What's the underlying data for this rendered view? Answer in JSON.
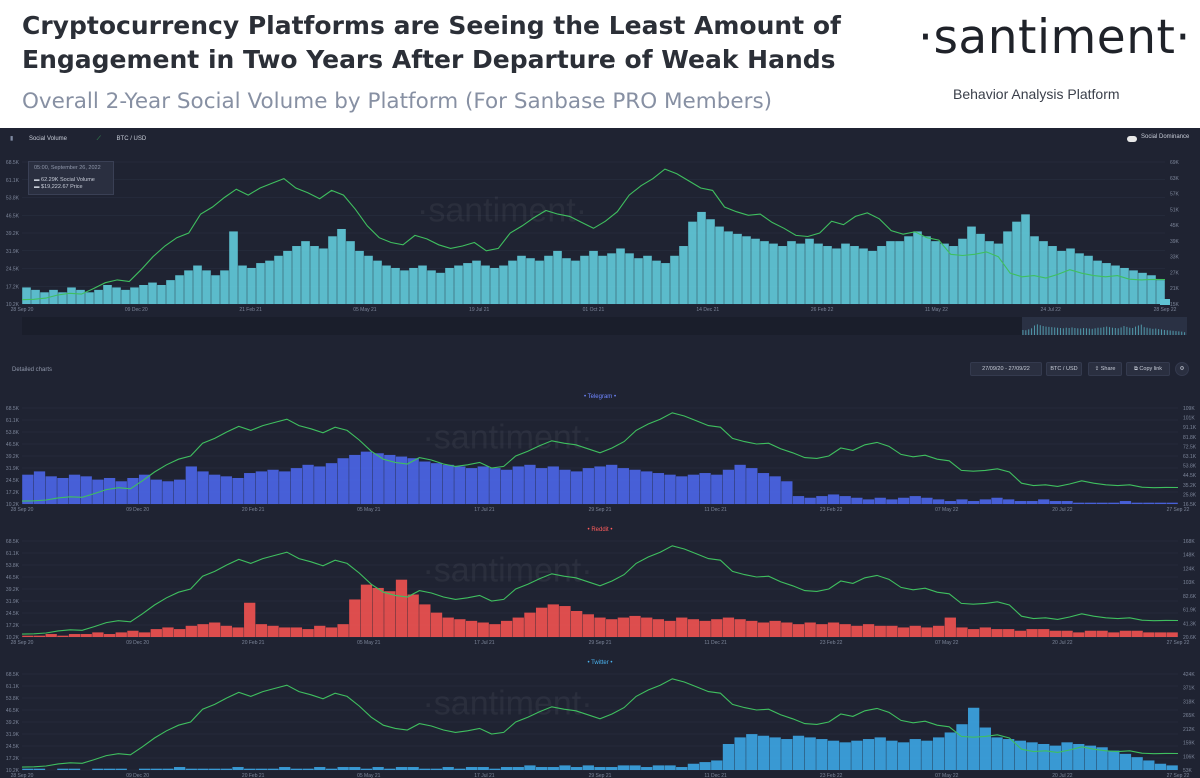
{
  "header": {
    "title_line1": "Cryptocurrency Platforms are Seeing the Least Amount of",
    "title_line2": "Engagement in Two Years After Departure of Weak Hands",
    "subtitle": "Overall 2-Year Social Volume by Platform (For Sanbase PRO Members)",
    "logo": "·santiment·",
    "logo_tagline": "Behavior Analysis Platform"
  },
  "dashboard": {
    "legend_social_volume": "Social Volume",
    "legend_btc": "BTC / USD",
    "social_dominance": "Social Dominance",
    "tooltip_date": "05:00, September 26, 2022",
    "tooltip_sv": "62.29K Social Volume",
    "tooltip_price": "$19,222.67 Price",
    "detailed_label": "Detailed charts",
    "date_range": "27/09/20 - 27/09/22",
    "pair_button": "BTC / USD",
    "share_button": "Share",
    "copy_link_button": "Copy link",
    "watermark": "·santiment·",
    "colors": {
      "background": "#1f2332",
      "btc_line": "#3fbf5f",
      "overall_bars": "#5fc4d4",
      "telegram_bars": "#4a63e0",
      "reddit_bars": "#e8504f",
      "twitter_bars": "#3ba0dc"
    }
  },
  "chart_data": [
    {
      "type": "bar",
      "panel": "overall",
      "title": "",
      "x_ticks": [
        "28 Sep 20",
        "09 Dec 20",
        "21 Feb 21",
        "05 May 21",
        "19 Jul 21",
        "01 Oct 21",
        "14 Dec 21",
        "26 Feb 22",
        "11 May 22",
        "24 Jul 22",
        "28 Sep 22"
      ],
      "y_left_ticks": [
        "68.5K",
        "61.1K",
        "53.8K",
        "46.5K",
        "39.2K",
        "31.9K",
        "24.5K",
        "17.2K",
        "10.2K"
      ],
      "y_right_ticks": [
        "69K",
        "63K",
        "57K",
        "51K",
        "45K",
        "39K",
        "33K",
        "27K",
        "21K",
        "15K"
      ],
      "ylim": [
        10200,
        68500
      ],
      "y2lim": [
        15000,
        69000
      ],
      "series": [
        {
          "name": "Social Volume",
          "kind": "bars",
          "color": "#5fc4d4",
          "values": [
            17,
            16,
            15,
            16,
            15,
            17,
            16,
            15,
            16,
            18,
            17,
            16,
            17,
            18,
            19,
            18,
            20,
            22,
            24,
            26,
            24,
            22,
            24,
            40,
            26,
            25,
            27,
            28,
            30,
            32,
            34,
            36,
            34,
            33,
            38,
            41,
            36,
            32,
            30,
            28,
            26,
            25,
            24,
            25,
            26,
            24,
            23,
            25,
            26,
            27,
            28,
            26,
            25,
            26,
            28,
            30,
            29,
            28,
            30,
            32,
            29,
            28,
            30,
            32,
            30,
            31,
            33,
            31,
            29,
            30,
            28,
            27,
            30,
            34,
            44,
            48,
            45,
            42,
            40,
            39,
            38,
            37,
            36,
            35,
            34,
            36,
            35,
            37,
            35,
            34,
            33,
            35,
            34,
            33,
            32,
            34,
            36,
            36,
            38,
            40,
            38,
            36,
            35,
            34,
            37,
            42,
            39,
            36,
            35,
            40,
            44,
            47,
            38,
            36,
            34,
            32,
            33,
            31,
            30,
            28,
            27,
            26,
            25,
            24,
            23,
            22,
            20
          ]
        },
        {
          "name": "BTC / USD",
          "kind": "line",
          "color": "#3fbf5f",
          "values": [
            10.8,
            11.0,
            11.5,
            12.8,
            13.5,
            13.2,
            15.5,
            18.0,
            19.2,
            18.5,
            23.5,
            29.0,
            33.5,
            37.0,
            39.0,
            47.0,
            50.0,
            54.0,
            57.5,
            55.0,
            58.0,
            60.0,
            62.0,
            58.0,
            56.0,
            53.5,
            57.0,
            55.0,
            49.0,
            42.0,
            37.0,
            35.0,
            34.0,
            38.0,
            36.5,
            34.0,
            32.5,
            33.5,
            35.0,
            31.5,
            32.5,
            39.0,
            42.0,
            45.5,
            48.5,
            47.0,
            46.0,
            43.5,
            41.0,
            44.0,
            48.0,
            55.0,
            59.0,
            62.0,
            66.0,
            64.0,
            61.0,
            58.0,
            57.0,
            50.0,
            48.0,
            46.5,
            47.0,
            43.5,
            41.0,
            38.0,
            37.5,
            39.0,
            44.0,
            42.5,
            46.0,
            47.5,
            45.0,
            40.0,
            38.5,
            39.5,
            37.0,
            36.0,
            30.0,
            29.5,
            30.0,
            31.0,
            29.0,
            22.0,
            20.5,
            21.0,
            20.0,
            21.5,
            23.5,
            22.0,
            21.0,
            20.5,
            21.0,
            19.5,
            19.2,
            19.4,
            19.3
          ]
        }
      ]
    },
    {
      "type": "bar",
      "panel": "telegram",
      "title": "• Telegram •",
      "x_ticks": [
        "28 Sep 20",
        "09 Dec 20",
        "20 Feb 21",
        "05 May 21",
        "17 Jul 21",
        "29 Sep 21",
        "11 Dec 21",
        "23 Feb 22",
        "07 May 22",
        "20 Jul 22",
        "27 Sep 22"
      ],
      "y_left_ticks": [
        "68.5K",
        "61.1K",
        "53.8K",
        "46.5K",
        "39.2K",
        "31.9K",
        "24.5K",
        "17.2K",
        "10.2K"
      ],
      "y_right_ticks": [
        "109K",
        "101K",
        "91.1K",
        "81.8K",
        "72.5K",
        "63.1K",
        "53.8K",
        "44.5K",
        "35.2K",
        "25.8K",
        "16.5K"
      ],
      "ylim": [
        10200,
        68500
      ],
      "y2lim": [
        16500,
        109000
      ],
      "series": [
        {
          "name": "Telegram",
          "kind": "bars",
          "color": "#4a63e0",
          "values": [
            28,
            30,
            27,
            26,
            28,
            27,
            25,
            26,
            24,
            26,
            28,
            25,
            24,
            25,
            33,
            30,
            28,
            27,
            26,
            29,
            30,
            31,
            30,
            32,
            34,
            33,
            35,
            38,
            40,
            42,
            41,
            40,
            39,
            38,
            36,
            35,
            34,
            33,
            32,
            33,
            32,
            31,
            33,
            34,
            32,
            33,
            31,
            30,
            32,
            33,
            34,
            32,
            31,
            30,
            29,
            28,
            27,
            28,
            29,
            28,
            31,
            34,
            32,
            29,
            27,
            24,
            15,
            14,
            15,
            16,
            15,
            14,
            13,
            14,
            13,
            14,
            15,
            14,
            13,
            12,
            13,
            12,
            13,
            14,
            13,
            12,
            12,
            13,
            12,
            12,
            11,
            11,
            11,
            11,
            12,
            11,
            11,
            11,
            11
          ]
        },
        {
          "name": "BTC / USD",
          "kind": "line",
          "color": "#3fbf5f",
          "values": [
            10.8,
            11.0,
            11.5,
            12.8,
            13.5,
            13.2,
            15.5,
            18.0,
            19.2,
            18.5,
            23.5,
            29.0,
            33.5,
            37.0,
            39.0,
            47.0,
            50.0,
            54.0,
            57.5,
            55.0,
            58.0,
            60.0,
            62.0,
            58.0,
            56.0,
            53.5,
            57.0,
            55.0,
            49.0,
            42.0,
            37.0,
            35.0,
            34.0,
            38.0,
            36.5,
            34.0,
            32.5,
            33.5,
            35.0,
            31.5,
            32.5,
            39.0,
            42.0,
            45.5,
            48.5,
            47.0,
            46.0,
            43.5,
            41.0,
            44.0,
            48.0,
            55.0,
            59.0,
            62.0,
            66.0,
            64.0,
            61.0,
            58.0,
            57.0,
            50.0,
            48.0,
            46.5,
            47.0,
            43.5,
            41.0,
            38.0,
            37.5,
            39.0,
            44.0,
            42.5,
            46.0,
            47.5,
            45.0,
            40.0,
            38.5,
            39.5,
            37.0,
            36.0,
            30.0,
            29.5,
            30.0,
            31.0,
            29.0,
            22.0,
            20.5,
            21.0,
            20.0,
            21.5,
            23.5,
            22.0,
            21.0,
            20.5,
            21.0,
            19.5,
            19.2,
            19.4,
            19.3
          ]
        }
      ]
    },
    {
      "type": "bar",
      "panel": "reddit",
      "title": "• Reddit •",
      "x_ticks": [
        "28 Sep 20",
        "09 Dec 20",
        "20 Feb 21",
        "05 May 21",
        "17 Jul 21",
        "29 Sep 21",
        "11 Dec 21",
        "23 Feb 22",
        "07 May 22",
        "20 Jul 22",
        "27 Sep 22"
      ],
      "y_left_ticks": [
        "68.5K",
        "61.1K",
        "53.8K",
        "46.5K",
        "39.2K",
        "31.9K",
        "24.5K",
        "17.2K",
        "10.2K"
      ],
      "y_right_ticks": [
        "168K",
        "148K",
        "124K",
        "103K",
        "82.6K",
        "61.9K",
        "41.3K",
        "20.6K"
      ],
      "ylim": [
        10200,
        68500
      ],
      "y2lim": [
        0,
        168000
      ],
      "series": [
        {
          "name": "Reddit",
          "kind": "bars",
          "color": "#e8504f",
          "values": [
            11,
            11,
            12,
            11,
            12,
            12,
            13,
            12,
            13,
            14,
            13,
            15,
            16,
            15,
            17,
            18,
            19,
            17,
            16,
            31,
            18,
            17,
            16,
            16,
            15,
            17,
            16,
            18,
            33,
            42,
            40,
            38,
            45,
            36,
            30,
            25,
            22,
            21,
            20,
            19,
            18,
            20,
            22,
            25,
            28,
            30,
            29,
            26,
            24,
            22,
            21,
            22,
            23,
            22,
            21,
            20,
            22,
            21,
            20,
            21,
            22,
            21,
            20,
            19,
            20,
            19,
            18,
            19,
            18,
            19,
            18,
            17,
            18,
            17,
            17,
            16,
            17,
            16,
            17,
            22,
            16,
            15,
            16,
            15,
            15,
            14,
            15,
            15,
            14,
            14,
            13,
            14,
            14,
            13,
            14,
            14,
            13,
            13,
            13
          ]
        },
        {
          "name": "BTC / USD",
          "kind": "line",
          "color": "#3fbf5f",
          "values": [
            10.8,
            11.0,
            11.5,
            12.8,
            13.5,
            13.2,
            15.5,
            18.0,
            19.2,
            18.5,
            23.5,
            29.0,
            33.5,
            37.0,
            39.0,
            47.0,
            50.0,
            54.0,
            57.5,
            55.0,
            58.0,
            60.0,
            62.0,
            58.0,
            56.0,
            53.5,
            57.0,
            55.0,
            49.0,
            42.0,
            37.0,
            35.0,
            34.0,
            38.0,
            36.5,
            34.0,
            32.5,
            33.5,
            35.0,
            31.5,
            32.5,
            39.0,
            42.0,
            45.5,
            48.5,
            47.0,
            46.0,
            43.5,
            41.0,
            44.0,
            48.0,
            55.0,
            59.0,
            62.0,
            66.0,
            64.0,
            61.0,
            58.0,
            57.0,
            50.0,
            48.0,
            46.5,
            47.0,
            43.5,
            41.0,
            38.0,
            37.5,
            39.0,
            44.0,
            42.5,
            46.0,
            47.5,
            45.0,
            40.0,
            38.5,
            39.5,
            37.0,
            36.0,
            30.0,
            29.5,
            30.0,
            31.0,
            29.0,
            22.0,
            20.5,
            21.0,
            20.0,
            21.5,
            23.5,
            22.0,
            21.0,
            20.5,
            21.0,
            19.5,
            19.2,
            19.4,
            19.3
          ]
        }
      ]
    },
    {
      "type": "bar",
      "panel": "twitter",
      "title": "• Twitter •",
      "x_ticks": [
        "28 Sep 20",
        "09 Dec 20",
        "20 Feb 21",
        "05 May 21",
        "17 Jul 21",
        "29 Sep 21",
        "11 Dec 21",
        "23 Feb 22",
        "07 May 22",
        "20 Jul 22",
        "27 Sep 22"
      ],
      "y_left_ticks": [
        "68.5K",
        "61.1K",
        "53.8K",
        "46.5K",
        "39.2K",
        "31.9K",
        "24.5K",
        "17.2K",
        "10.2K"
      ],
      "y_right_ticks": [
        "424K",
        "371K",
        "318K",
        "265K",
        "212K",
        "159K",
        "106K",
        "53K"
      ],
      "ylim": [
        10200,
        68500
      ],
      "y2lim": [
        0,
        424000
      ],
      "series": [
        {
          "name": "Twitter",
          "kind": "bars",
          "color": "#3ba0dc",
          "values": [
            11,
            11,
            10,
            11,
            11,
            10,
            11,
            11,
            11,
            10,
            11,
            11,
            11,
            12,
            11,
            11,
            11,
            11,
            12,
            11,
            11,
            11,
            12,
            11,
            11,
            12,
            11,
            12,
            12,
            11,
            12,
            11,
            12,
            12,
            11,
            11,
            12,
            11,
            12,
            12,
            11,
            12,
            12,
            13,
            12,
            12,
            13,
            12,
            13,
            12,
            12,
            13,
            13,
            12,
            13,
            13,
            12,
            14,
            15,
            16,
            26,
            30,
            32,
            31,
            30,
            29,
            31,
            30,
            29,
            28,
            27,
            28,
            29,
            30,
            28,
            27,
            29,
            28,
            30,
            33,
            38,
            48,
            36,
            30,
            29,
            28,
            27,
            26,
            25,
            27,
            26,
            25,
            24,
            22,
            20,
            18,
            16,
            14,
            13
          ]
        },
        {
          "name": "BTC / USD",
          "kind": "line",
          "color": "#3fbf5f",
          "values": [
            10.8,
            11.0,
            11.5,
            12.8,
            13.5,
            13.2,
            15.5,
            18.0,
            19.2,
            18.5,
            23.5,
            29.0,
            33.5,
            37.0,
            39.0,
            47.0,
            50.0,
            54.0,
            57.5,
            55.0,
            58.0,
            60.0,
            62.0,
            58.0,
            56.0,
            53.5,
            57.0,
            55.0,
            49.0,
            42.0,
            37.0,
            35.0,
            34.0,
            38.0,
            36.5,
            34.0,
            32.5,
            33.5,
            35.0,
            31.5,
            32.5,
            39.0,
            42.0,
            45.5,
            48.5,
            47.0,
            46.0,
            43.5,
            41.0,
            44.0,
            48.0,
            55.0,
            59.0,
            62.0,
            66.0,
            64.0,
            61.0,
            58.0,
            57.0,
            50.0,
            48.0,
            46.5,
            47.0,
            43.5,
            41.0,
            38.0,
            37.5,
            39.0,
            44.0,
            42.5,
            46.0,
            47.5,
            45.0,
            40.0,
            38.5,
            39.5,
            37.0,
            36.0,
            30.0,
            29.5,
            30.0,
            31.0,
            29.0,
            22.0,
            20.5,
            21.0,
            20.0,
            21.5,
            23.5,
            22.0,
            21.0,
            20.5,
            21.0,
            19.5,
            19.2,
            19.4,
            19.3
          ]
        }
      ]
    }
  ]
}
